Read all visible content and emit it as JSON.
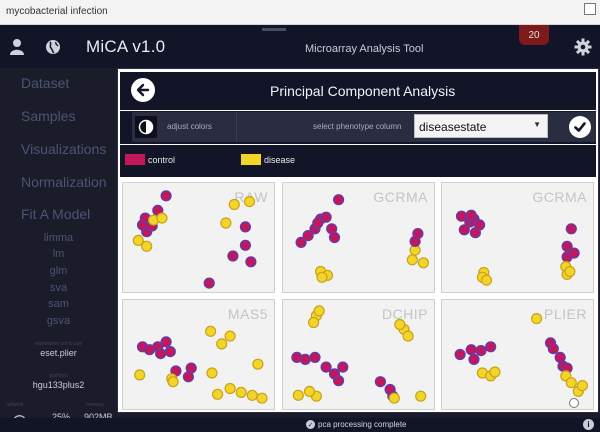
{
  "window": {
    "title": "mycobacterial infection"
  },
  "header": {
    "brand": "MiCA v1.0",
    "subtitle": "Microarray Analysis Tool",
    "badge_count": "20",
    "icons": {
      "user": "user-icon",
      "globe": "globe-icon",
      "settings": "gear-icon"
    }
  },
  "sidebar": {
    "nav": [
      "Dataset",
      "Samples",
      "Visualizations",
      "Normalization",
      "Fit A Model"
    ],
    "models": [
      "limma",
      "lm",
      "glm",
      "sva",
      "sam",
      "gsva"
    ],
    "expression_label": "expression set to use",
    "expression_value": "eset.plier",
    "platform_label": "platform",
    "platform_value": "hgu133plus2",
    "network_label": "network",
    "memory_label": "memory",
    "network_value": "25%",
    "memory_value": "902MB"
  },
  "panel": {
    "title": "Principal Component Analysis",
    "adjust_label": "adjust colors",
    "phenotype_label": "select phenotype column",
    "phenotype_value": "diseasestate"
  },
  "legend": [
    {
      "label": "control",
      "color": "#c2185b"
    },
    {
      "label": "disease",
      "color": "#f3d42a"
    }
  ],
  "colors": {
    "control": "#c2185b",
    "disease": "#f3d42a",
    "stroke": "#5a3fb3"
  },
  "plots": [
    {
      "title": "RAW",
      "points": [
        [
          0.11,
          0.29,
          "c"
        ],
        [
          0.26,
          0.06,
          "c"
        ],
        [
          0.12,
          0.43,
          "c"
        ],
        [
          0.16,
          0.37,
          "c"
        ],
        [
          0.09,
          0.36,
          "c"
        ],
        [
          0.2,
          0.21,
          "c"
        ],
        [
          0.17,
          0.31,
          "d"
        ],
        [
          0.06,
          0.52,
          "d"
        ],
        [
          0.12,
          0.58,
          "d"
        ],
        [
          0.23,
          0.29,
          "d"
        ],
        [
          0.69,
          0.34,
          "d"
        ],
        [
          0.75,
          0.15,
          "d"
        ],
        [
          0.86,
          0.12,
          "d"
        ],
        [
          0.83,
          0.38,
          "c"
        ],
        [
          0.83,
          0.57,
          "c"
        ],
        [
          0.74,
          0.68,
          "c"
        ],
        [
          0.87,
          0.74,
          "c"
        ],
        [
          0.57,
          0.96,
          "c"
        ]
      ]
    },
    {
      "title": "GCRMA",
      "points": [
        [
          0.13,
          0.47,
          "c"
        ],
        [
          0.18,
          0.4,
          "c"
        ],
        [
          0.22,
          0.3,
          "c"
        ],
        [
          0.2,
          0.34,
          "c"
        ],
        [
          0.3,
          0.4,
          "c"
        ],
        [
          0.26,
          0.28,
          "c"
        ],
        [
          0.32,
          0.49,
          "c"
        ],
        [
          0.35,
          0.1,
          "c"
        ],
        [
          0.08,
          0.54,
          "c"
        ],
        [
          0.9,
          0.62,
          "d"
        ],
        [
          0.88,
          0.72,
          "d"
        ],
        [
          0.96,
          0.75,
          "d"
        ],
        [
          0.22,
          0.84,
          "d"
        ],
        [
          0.27,
          0.88,
          "d"
        ],
        [
          0.23,
          0.9,
          "d"
        ],
        [
          0.92,
          0.45,
          "c"
        ],
        [
          0.9,
          0.53,
          "c"
        ]
      ]
    },
    {
      "title": "GCRMA",
      "points": [
        [
          0.11,
          0.41,
          "c"
        ],
        [
          0.15,
          0.33,
          "c"
        ],
        [
          0.18,
          0.3,
          "c"
        ],
        [
          0.22,
          0.36,
          "c"
        ],
        [
          0.19,
          0.44,
          "c"
        ],
        [
          0.09,
          0.27,
          "c"
        ],
        [
          0.16,
          0.26,
          "c"
        ],
        [
          0.88,
          0.4,
          "c"
        ],
        [
          0.85,
          0.58,
          "c"
        ],
        [
          0.85,
          0.69,
          "c"
        ],
        [
          0.9,
          0.65,
          "c"
        ],
        [
          0.25,
          0.85,
          "d"
        ],
        [
          0.24,
          0.9,
          "d"
        ],
        [
          0.27,
          0.93,
          "d"
        ],
        [
          0.84,
          0.79,
          "d"
        ],
        [
          0.85,
          0.87,
          "d"
        ],
        [
          0.87,
          0.84,
          "d"
        ]
      ]
    },
    {
      "title": "MAS5",
      "points": [
        [
          0.09,
          0.41,
          "c"
        ],
        [
          0.14,
          0.44,
          "c"
        ],
        [
          0.2,
          0.41,
          "c"
        ],
        [
          0.26,
          0.36,
          "c"
        ],
        [
          0.29,
          0.46,
          "c"
        ],
        [
          0.22,
          0.48,
          "c"
        ],
        [
          0.33,
          0.66,
          "c"
        ],
        [
          0.44,
          0.63,
          "c"
        ],
        [
          0.42,
          0.72,
          "c"
        ],
        [
          0.3,
          0.74,
          "d"
        ],
        [
          0.31,
          0.77,
          "d"
        ],
        [
          0.07,
          0.7,
          "d"
        ],
        [
          0.58,
          0.25,
          "d"
        ],
        [
          0.66,
          0.38,
          "d"
        ],
        [
          0.72,
          0.3,
          "d"
        ],
        [
          0.59,
          0.68,
          "d"
        ],
        [
          0.63,
          0.9,
          "d"
        ],
        [
          0.72,
          0.84,
          "d"
        ],
        [
          0.8,
          0.88,
          "d"
        ],
        [
          0.88,
          0.91,
          "d"
        ],
        [
          0.92,
          0.59,
          "d"
        ],
        [
          0.95,
          0.94,
          "d"
        ]
      ]
    },
    {
      "title": "DCHIP",
      "points": [
        [
          0.05,
          0.52,
          "c"
        ],
        [
          0.11,
          0.54,
          "c"
        ],
        [
          0.18,
          0.52,
          "c"
        ],
        [
          0.26,
          0.62,
          "c"
        ],
        [
          0.32,
          0.69,
          "c"
        ],
        [
          0.38,
          0.62,
          "c"
        ],
        [
          0.35,
          0.76,
          "c"
        ],
        [
          0.65,
          0.77,
          "c"
        ],
        [
          0.72,
          0.85,
          "c"
        ],
        [
          0.74,
          0.92,
          "c"
        ],
        [
          0.19,
          0.09,
          "d"
        ],
        [
          0.21,
          0.04,
          "d"
        ],
        [
          0.17,
          0.16,
          "d"
        ],
        [
          0.06,
          0.91,
          "d"
        ],
        [
          0.19,
          0.92,
          "d"
        ],
        [
          0.14,
          0.87,
          "d"
        ],
        [
          0.82,
          0.23,
          "d"
        ],
        [
          0.85,
          0.3,
          "d"
        ],
        [
          0.79,
          0.18,
          "d"
        ],
        [
          0.75,
          0.94,
          "d"
        ],
        [
          0.94,
          0.92,
          "d"
        ]
      ]
    },
    {
      "title": "PLIER",
      "points": [
        [
          0.08,
          0.49,
          "c"
        ],
        [
          0.16,
          0.44,
          "c"
        ],
        [
          0.23,
          0.45,
          "c"
        ],
        [
          0.3,
          0.41,
          "c"
        ],
        [
          0.18,
          0.54,
          "c"
        ],
        [
          0.73,
          0.37,
          "c"
        ],
        [
          0.75,
          0.43,
          "c"
        ],
        [
          0.8,
          0.52,
          "c"
        ],
        [
          0.82,
          0.61,
          "c"
        ],
        [
          0.85,
          0.63,
          "c"
        ],
        [
          0.63,
          0.12,
          "d"
        ],
        [
          0.24,
          0.68,
          "d"
        ],
        [
          0.3,
          0.71,
          "d"
        ],
        [
          0.33,
          0.67,
          "d"
        ],
        [
          0.84,
          0.71,
          "d"
        ],
        [
          0.88,
          0.78,
          "d"
        ],
        [
          0.93,
          0.87,
          "d"
        ],
        [
          0.96,
          0.81,
          "d"
        ]
      ]
    }
  ],
  "status": {
    "text": "pca processing complete"
  }
}
